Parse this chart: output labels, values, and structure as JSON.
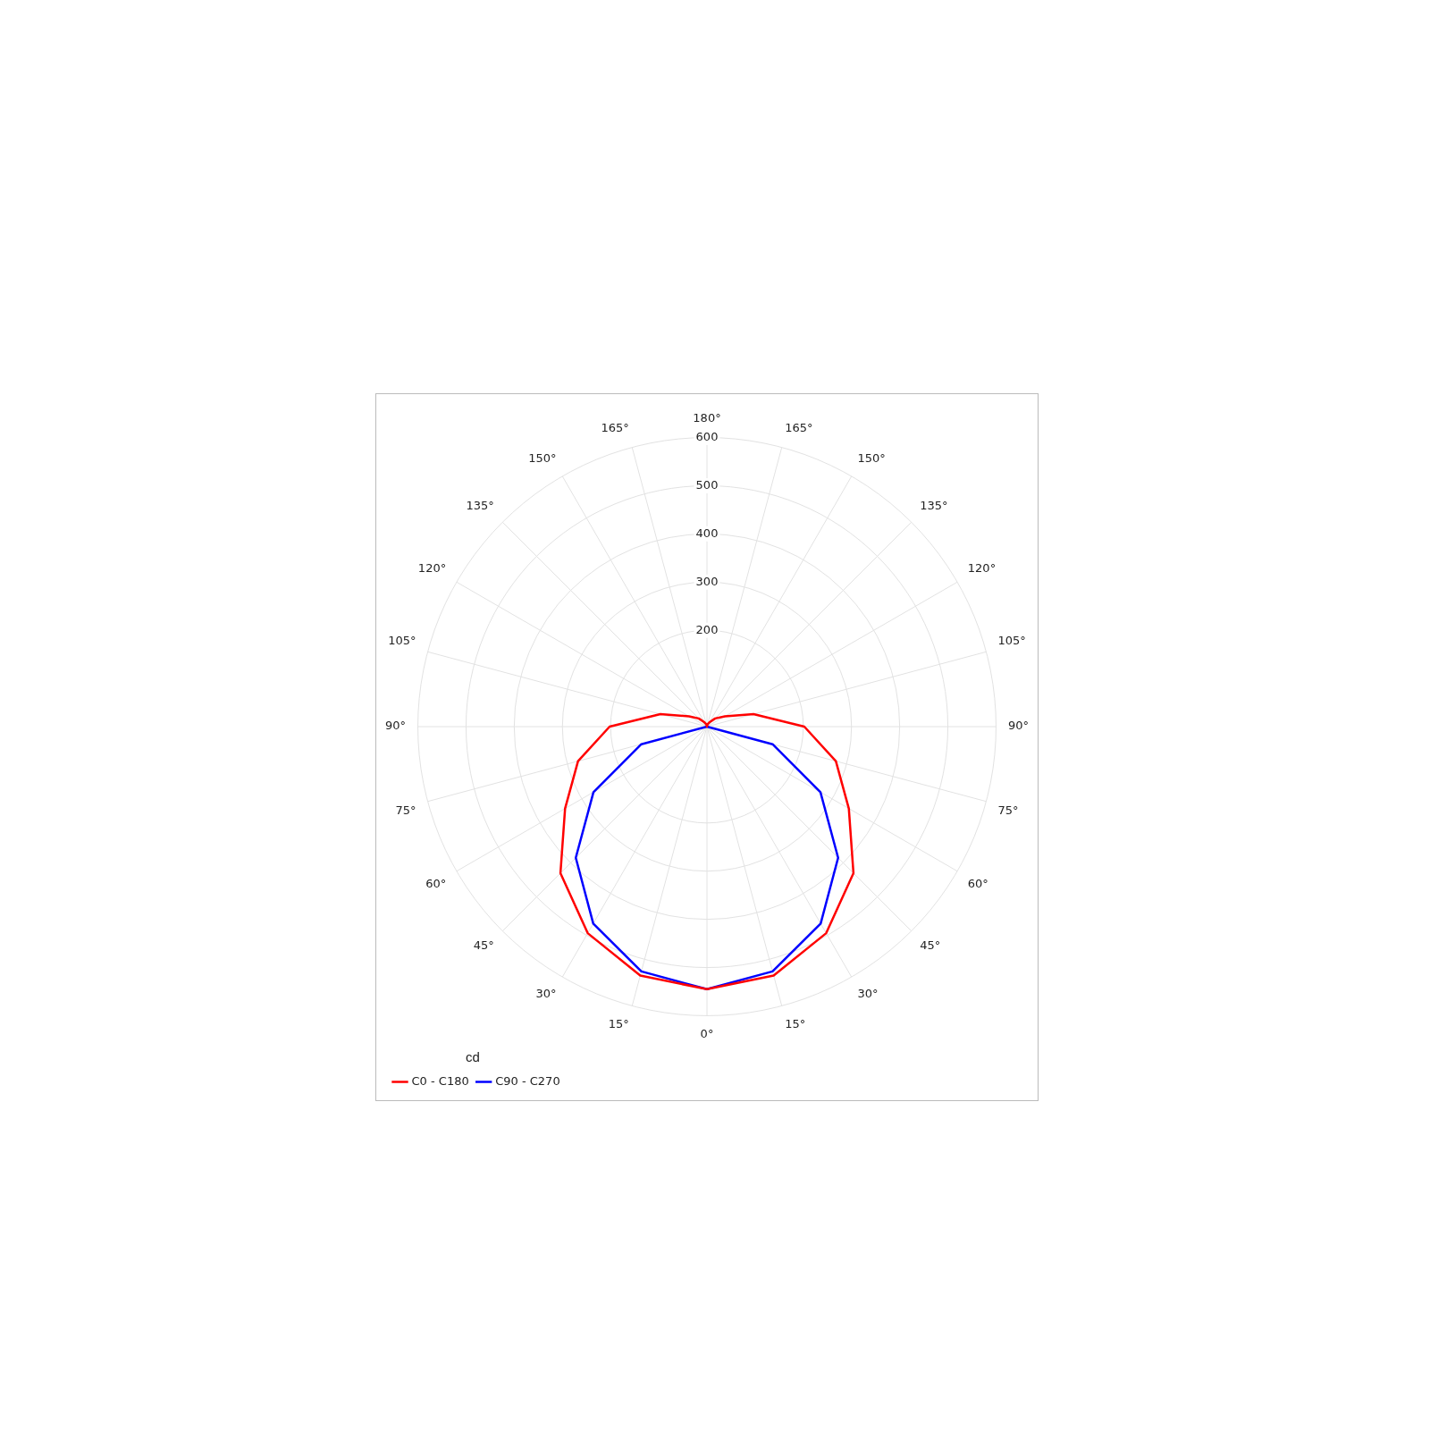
{
  "chart_data": {
    "type": "radar",
    "legend_title": "cd",
    "categories": [
      "180°",
      "165°",
      "150°",
      "135°",
      "120°",
      "105°",
      "90°",
      "75°",
      "60°",
      "45°",
      "30°",
      "15°",
      "0°",
      "15°",
      "30°",
      "45°",
      "60°",
      "75°",
      "90°",
      "105°",
      "120°",
      "135°",
      "150°",
      "165°"
    ],
    "series": [
      {
        "name": "C0 - C180",
        "color": "#ff0000",
        "values": [
          0,
          5,
          10,
          24,
          43,
          100,
          202,
          277,
          340,
          430,
          495,
          535,
          545,
          535,
          495,
          430,
          340,
          277,
          202,
          100,
          43,
          24,
          10,
          5
        ]
      },
      {
        "name": "C90 - C270",
        "color": "#0000ff",
        "values": [
          0,
          0,
          0,
          0,
          0,
          0,
          0,
          141,
          272,
          385,
          472,
          526,
          545,
          526,
          472,
          385,
          272,
          141,
          0,
          0,
          0,
          0,
          0,
          0
        ]
      }
    ],
    "ylim": [
      0,
      600
    ],
    "yticks": [
      200,
      300,
      400,
      500,
      600
    ],
    "grid": true,
    "legend": "bottom left",
    "marker": "none",
    "line_style": "solid"
  }
}
